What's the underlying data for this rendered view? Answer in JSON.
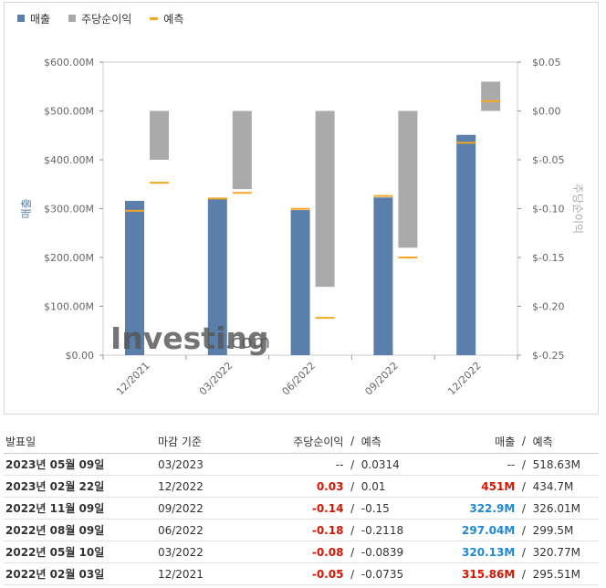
{
  "legend": {
    "items": [
      {
        "label": "매출",
        "color": "#5b7fab",
        "kind": "square"
      },
      {
        "label": "주당순이익",
        "color": "#aaaaaa",
        "kind": "square"
      },
      {
        "label": "예측",
        "color": "#f5a623",
        "kind": "line"
      }
    ]
  },
  "chart_data": {
    "type": "bar",
    "categories": [
      "12/2021",
      "03/2022",
      "06/2022",
      "09/2022",
      "12/2022"
    ],
    "left_axis": {
      "label": "매출",
      "min": 0,
      "max": 600,
      "ticks": [
        "$0.00",
        "$100.00M",
        "$200.00M",
        "$300.00M",
        "$400.00M",
        "$500.00M",
        "$600.00M"
      ],
      "tick_values": [
        0,
        100,
        200,
        300,
        400,
        500,
        600
      ]
    },
    "right_axis": {
      "label": "주당순이익",
      "min": -0.25,
      "max": 0.05,
      "ticks": [
        "$-0.25",
        "$-0.20",
        "$-0.15",
        "$-0.10",
        "$-0.05",
        "$0.00",
        "$0.05"
      ],
      "tick_values": [
        -0.25,
        -0.2,
        -0.15,
        -0.1,
        -0.05,
        0.0,
        0.05
      ]
    },
    "series": [
      {
        "name": "매출",
        "axis": "left",
        "values": [
          315.86,
          320.13,
          297.04,
          322.9,
          451
        ],
        "color": "#5b7fab"
      },
      {
        "name": "매출 예측",
        "axis": "left",
        "values": [
          295.51,
          320.77,
          299.5,
          326.01,
          434.7
        ],
        "color": "#f5a623"
      },
      {
        "name": "주당순이익",
        "axis": "right",
        "values": [
          -0.05,
          -0.08,
          -0.18,
          -0.14,
          0.03
        ],
        "color": "#aaaaaa"
      },
      {
        "name": "주당순이익 예측",
        "axis": "right",
        "values": [
          -0.0735,
          -0.0839,
          -0.2118,
          -0.15,
          0.01
        ],
        "color": "#f5a623"
      }
    ],
    "grid": false
  },
  "watermark": {
    "brand": "Investing",
    "suffix": ".com"
  },
  "table": {
    "headers": {
      "date": "발표일",
      "period": "마감 기준",
      "eps": "주당순이익",
      "slash": "/",
      "eps_forecast": "예측",
      "revenue": "매출",
      "rev_slash": "/",
      "revenue_forecast": "예측"
    },
    "rows": [
      {
        "date": "2023년 05월 09일",
        "period": "03/2023",
        "eps": "--",
        "eps_forecast": "0.0314",
        "revenue": "--",
        "revenue_forecast": "518.63M",
        "eps_class": "plain",
        "rev_class": "plain"
      },
      {
        "date": "2023년 02월 22일",
        "period": "12/2022",
        "eps": "0.03",
        "eps_forecast": "0.01",
        "revenue": "451M",
        "revenue_forecast": "434.7M",
        "eps_class": "pos",
        "rev_class": "pos"
      },
      {
        "date": "2022년 11월 09일",
        "period": "09/2022",
        "eps": "-0.14",
        "eps_forecast": "-0.15",
        "revenue": "322.9M",
        "revenue_forecast": "326.01M",
        "eps_class": "neg",
        "rev_class": "blue"
      },
      {
        "date": "2022년 08월 09일",
        "period": "06/2022",
        "eps": "-0.18",
        "eps_forecast": "-0.2118",
        "revenue": "297.04M",
        "revenue_forecast": "299.5M",
        "eps_class": "neg",
        "rev_class": "blue"
      },
      {
        "date": "2022년 05월 10일",
        "period": "03/2022",
        "eps": "-0.08",
        "eps_forecast": "-0.0839",
        "revenue": "320.13M",
        "revenue_forecast": "320.77M",
        "eps_class": "neg",
        "rev_class": "blue"
      },
      {
        "date": "2022년 02월 03일",
        "period": "12/2021",
        "eps": "-0.05",
        "eps_forecast": "-0.0735",
        "revenue": "315.86M",
        "revenue_forecast": "295.51M",
        "eps_class": "neg",
        "rev_class": "pos"
      }
    ]
  }
}
